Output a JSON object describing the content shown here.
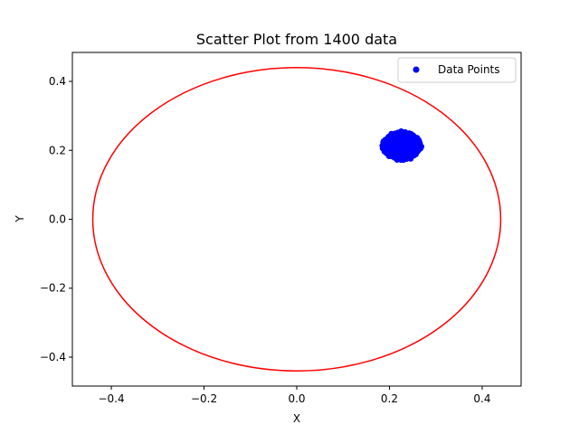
{
  "chart_data": {
    "type": "scatter",
    "title": "Scatter Plot from 1400 data",
    "xlabel": "X",
    "ylabel": "Y",
    "xlim": [
      -0.484,
      0.484
    ],
    "ylim": [
      -0.484,
      0.484
    ],
    "xticks": [
      -0.4,
      -0.2,
      0.0,
      0.2,
      0.4
    ],
    "xtick_labels": [
      "−0.4",
      "−0.2",
      "0.0",
      "0.2",
      "0.4"
    ],
    "yticks": [
      -0.4,
      -0.2,
      0.0,
      0.2,
      0.4
    ],
    "ytick_labels": [
      "−0.4",
      "−0.2",
      "0.0",
      "0.2",
      "0.4"
    ],
    "grid": false,
    "legend": {
      "placement": "top-right",
      "entries": [
        "Data Points"
      ]
    },
    "series": [
      {
        "name": "Data Points",
        "kind": "scatter",
        "color": "#0000ff",
        "count": 1400,
        "cluster_center": [
          0.227,
          0.213
        ],
        "cluster_radius": 0.038
      },
      {
        "kind": "circle",
        "color": "#ff0000",
        "center": [
          0.0,
          0.0
        ],
        "radius": 0.44
      }
    ]
  }
}
